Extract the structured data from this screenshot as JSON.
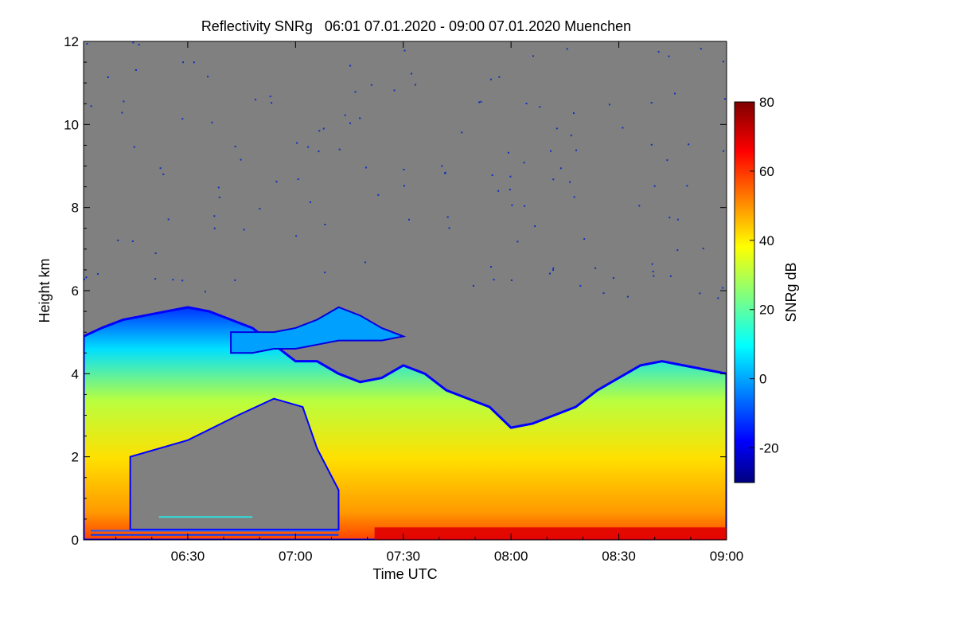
{
  "chart_data": {
    "type": "heatmap",
    "title": "Reflectivity SNRg   06:01 07.01.2020 - 09:00 07.01.2020 Muenchen",
    "xlabel": "Time UTC",
    "ylabel": "Height km",
    "x_ticks": [
      "06:30",
      "07:00",
      "07:30",
      "08:00",
      "08:30",
      "09:00"
    ],
    "x_tick_minutes": [
      30,
      60,
      90,
      120,
      150,
      180
    ],
    "xlim_minutes": [
      1,
      180
    ],
    "ylim": [
      0,
      12
    ],
    "y_ticks": [
      "0",
      "2",
      "4",
      "6",
      "8",
      "10",
      "12"
    ],
    "y_tick_values": [
      0,
      2,
      4,
      6,
      8,
      10,
      12
    ],
    "background_color": "#808080",
    "colorbar": {
      "label": "SNRg dB",
      "range": [
        -30,
        80
      ],
      "ticks": [
        "-20",
        "0",
        "20",
        "40",
        "60",
        "80"
      ],
      "tick_values": [
        -20,
        0,
        20,
        40,
        60,
        80
      ],
      "colormap": "jet"
    },
    "cloud_top_km": {
      "minutes": [
        1,
        6,
        12,
        18,
        24,
        30,
        36,
        42,
        48,
        54,
        60,
        66,
        72,
        78,
        84,
        90,
        96,
        102,
        108,
        114,
        120,
        126,
        132,
        138,
        144,
        150,
        156,
        162,
        168,
        174,
        180
      ],
      "heights": [
        4.9,
        5.1,
        5.3,
        5.4,
        5.5,
        5.6,
        5.5,
        5.3,
        5.1,
        4.7,
        4.3,
        4.3,
        4.0,
        3.8,
        3.9,
        4.2,
        4.0,
        3.6,
        3.4,
        3.2,
        2.7,
        2.8,
        3.0,
        3.2,
        3.6,
        3.9,
        4.2,
        4.3,
        4.2,
        4.1,
        4.0
      ]
    },
    "upper_layer_km": {
      "minutes": [
        42,
        48,
        54,
        60,
        66,
        72,
        78,
        84,
        90
      ],
      "top": [
        5.0,
        5.0,
        5.0,
        5.1,
        5.3,
        5.6,
        5.4,
        5.1,
        4.9
      ],
      "base": [
        4.5,
        4.5,
        4.6,
        4.6,
        4.7,
        4.8,
        4.8,
        4.8,
        4.9
      ]
    },
    "strong_echo_layer": {
      "minutes_start": 82,
      "minutes_end": 180,
      "height_km": [
        0,
        0.3
      ],
      "snr_db": 70
    }
  }
}
